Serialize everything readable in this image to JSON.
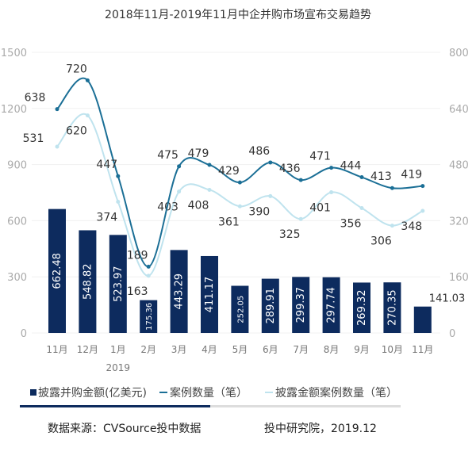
{
  "chart_data": {
    "type": "bar+line",
    "title": "2018年11月-2019年11月中企并购市场宣布交易趋势",
    "categories": [
      "11月",
      "12月",
      "1月",
      "2月",
      "3月",
      "4月",
      "5月",
      "6月",
      "7月",
      "8月",
      "9月",
      "10月",
      "11月"
    ],
    "year_marker": {
      "category_index": 2,
      "label": "2019"
    },
    "left_axis": {
      "range": [
        0,
        1500
      ],
      "ticks": [
        0,
        300,
        600,
        900,
        1200,
        1500
      ]
    },
    "right_axis": {
      "range": [
        0,
        800
      ],
      "ticks": [
        0,
        160,
        320,
        480,
        640,
        800
      ]
    },
    "series": [
      {
        "name": "披露并购金额(亿美元)",
        "type": "bar",
        "axis": "left",
        "color": "#0d2b5e",
        "values": [
          662.48,
          548.82,
          523.97,
          175.36,
          443.29,
          411.17,
          252.05,
          289.91,
          299.37,
          297.74,
          269.32,
          270.35,
          141.03
        ]
      },
      {
        "name": "案例数量（笔）",
        "type": "line",
        "axis": "right",
        "color": "#1b6f96",
        "values": [
          638,
          720,
          447,
          189,
          475,
          479,
          429,
          486,
          436,
          471,
          444,
          413,
          419
        ]
      },
      {
        "name": "披露金额案例数量（笔）",
        "type": "line",
        "axis": "right",
        "color": "#bfe3ee",
        "values": [
          531,
          620,
          374,
          163,
          403,
          408,
          361,
          390,
          325,
          401,
          356,
          306,
          348
        ]
      }
    ],
    "grid": true,
    "legend_position": "bottom"
  },
  "footer": {
    "source": "数据来源：CVSource投中数据",
    "credit": "投中研究院，2019.12"
  }
}
